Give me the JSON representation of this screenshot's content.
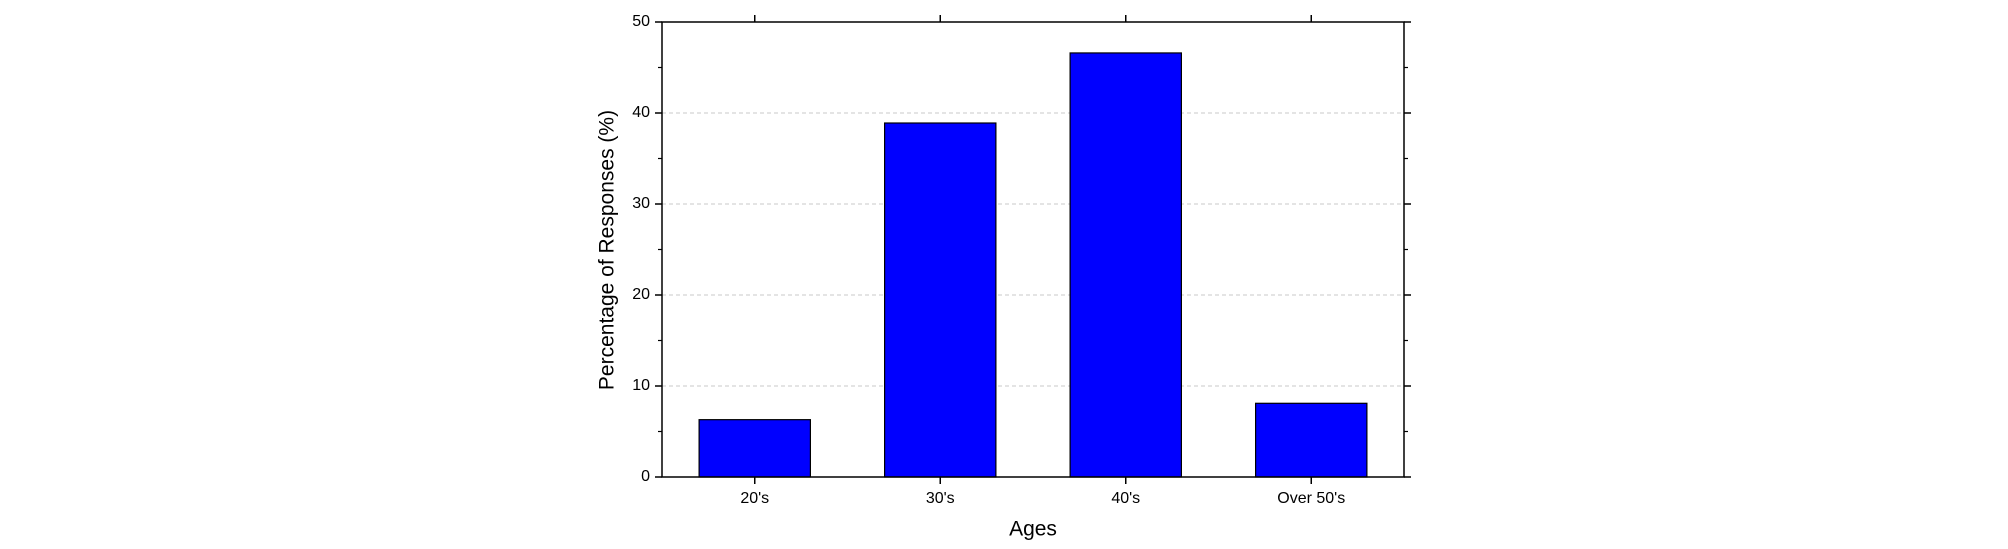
{
  "chart_data": {
    "type": "bar",
    "x_label": "Ages",
    "y_label": "Percentage of Responses (%)",
    "categories": [
      "20's",
      "30's",
      "40's",
      "Over 50's"
    ],
    "values": [
      6.3,
      38.9,
      46.6,
      8.1
    ],
    "color": "#0000ff",
    "ylim": [
      0,
      50
    ],
    "yticks": [
      0,
      10,
      20,
      30,
      40,
      50
    ],
    "grid": true
  }
}
